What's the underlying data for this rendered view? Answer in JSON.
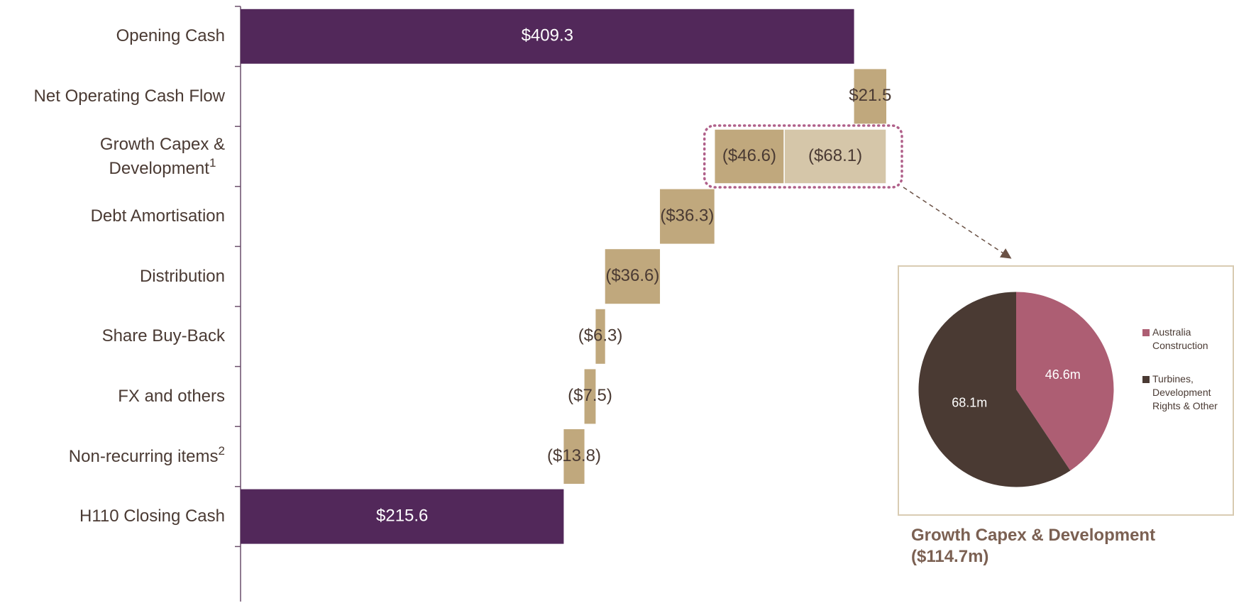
{
  "chart_data": [
    {
      "type": "waterfall",
      "categories": [
        "Opening Cash",
        "Net Operating Cash Flow",
        "Growth Capex &\nDevelopment",
        "Debt Amortisation",
        "Distribution",
        "Share Buy-Back",
        "FX and others",
        "Non-recurring items",
        "H110 Closing Cash"
      ],
      "footnotes": [
        null,
        null,
        "1",
        null,
        null,
        null,
        null,
        "2",
        null
      ],
      "values": [
        409.3,
        21.5,
        [
          -46.6,
          -68.1
        ],
        -36.3,
        -36.6,
        -6.3,
        -7.5,
        -13.8,
        215.6
      ],
      "value_labels": [
        "$409.3",
        "$21.5",
        [
          "($46.6)",
          "($68.1)"
        ],
        "($36.3)",
        "($36.6)",
        "($6.3)",
        "($7.5)",
        "($13.8)",
        "$215.6"
      ],
      "total_color": "#52285a",
      "color": "#c0a87d",
      "segment_colors": [
        "#c0a87d",
        "#d5c6a9"
      ]
    },
    {
      "type": "pie",
      "title": "Growth Capex & Development ($114.7m)",
      "categories": [
        "Australia Construction",
        "Turbines, Development Rights & Other"
      ],
      "values": [
        46.6,
        68.1
      ],
      "value_labels": [
        "46.6m",
        "68.1m"
      ],
      "colors": [
        "#ad5e73",
        "#4a3a33"
      ]
    }
  ]
}
